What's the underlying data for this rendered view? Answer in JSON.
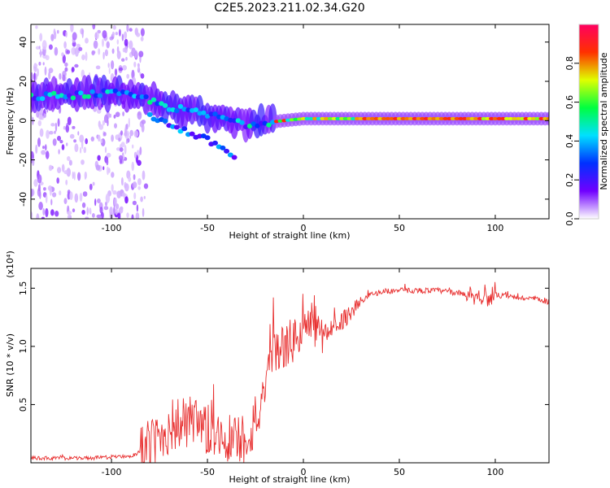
{
  "title": "C2E5.2023.211.02.34.G20",
  "chart_data": [
    {
      "type": "heatmap",
      "xlabel": "Height of straight line (km)",
      "ylabel": "Frequency (Hz)",
      "xlim": [
        -142,
        128
      ],
      "ylim": [
        -50,
        49
      ],
      "xticks": [
        -100,
        -50,
        0,
        50,
        100
      ],
      "yticks": [
        -40,
        -20,
        0,
        20,
        40
      ],
      "colorbar": {
        "label": "Normalized spectral amplitude",
        "range": [
          0,
          1
        ],
        "ticks": [
          "0.0",
          "0.2",
          "0.4",
          "0.6",
          "0.8"
        ],
        "colors": [
          "#ffffff",
          "#7000ff",
          "#0030ff",
          "#00e0ff",
          "#00ff40",
          "#e0ff00",
          "#ff3000",
          "#ff0060"
        ]
      },
      "ridge": {
        "x": [
          -142,
          -120,
          -100,
          -85,
          -70,
          -55,
          -40,
          -30,
          -20,
          -10,
          0,
          20,
          40,
          60,
          80,
          100,
          128
        ],
        "y": [
          12,
          13,
          14,
          12,
          7,
          4,
          1,
          -2,
          -1,
          0,
          1,
          1,
          1,
          1,
          1,
          1,
          1
        ]
      },
      "secondary_branch": {
        "x": [
          -80,
          -70,
          -60,
          -50,
          -40,
          -35
        ],
        "y": [
          3,
          -2,
          -6,
          -10,
          -15,
          -20
        ]
      }
    },
    {
      "type": "line",
      "xlabel": "Height of straight line (km)",
      "ylabel": "SNR (10 * v/v)",
      "multiplier": "(x10⁴)",
      "xlim": [
        -142,
        128
      ],
      "ylim": [
        0,
        1.67
      ],
      "xticks": [
        -100,
        -50,
        0,
        50,
        100
      ],
      "yticks": [
        "0.5",
        "1.0",
        "1.5"
      ],
      "color": "#e83030",
      "series": [
        {
          "x": [
            -142,
            -130,
            -120,
            -110,
            -100,
            -90,
            -85,
            -80,
            -75,
            -70,
            -65,
            -60,
            -55,
            -50,
            -45,
            -40,
            -35,
            -30,
            -25,
            -20,
            -17,
            -15,
            -10,
            -5,
            0,
            5,
            10,
            15,
            20,
            25,
            30,
            35,
            40,
            50,
            60,
            70,
            80,
            88,
            92,
            95,
            100,
            110,
            120,
            128
          ],
          "y": [
            0.04,
            0.04,
            0.04,
            0.04,
            0.05,
            0.06,
            0.08,
            0.14,
            0.22,
            0.3,
            0.34,
            0.32,
            0.3,
            0.26,
            0.24,
            0.22,
            0.2,
            0.22,
            0.35,
            0.55,
            0.85,
            0.95,
            1.0,
            1.05,
            1.15,
            1.2,
            1.1,
            1.15,
            1.22,
            1.3,
            1.38,
            1.44,
            1.47,
            1.48,
            1.48,
            1.48,
            1.46,
            1.44,
            1.43,
            1.42,
            1.44,
            1.42,
            1.41,
            1.38
          ]
        }
      ],
      "noise_regions": [
        {
          "x": [
            -142,
            -85
          ],
          "amplitude": 0.02
        },
        {
          "x": [
            -85,
            -25
          ],
          "amplitude": 0.3
        },
        {
          "x": [
            -25,
            10
          ],
          "amplitude": 0.25
        },
        {
          "x": [
            10,
            30
          ],
          "amplitude": 0.1
        },
        {
          "x": [
            30,
            85
          ],
          "amplitude": 0.03
        },
        {
          "x": [
            85,
            100
          ],
          "amplitude": 0.1
        },
        {
          "x": [
            100,
            128
          ],
          "amplitude": 0.03
        }
      ]
    }
  ]
}
